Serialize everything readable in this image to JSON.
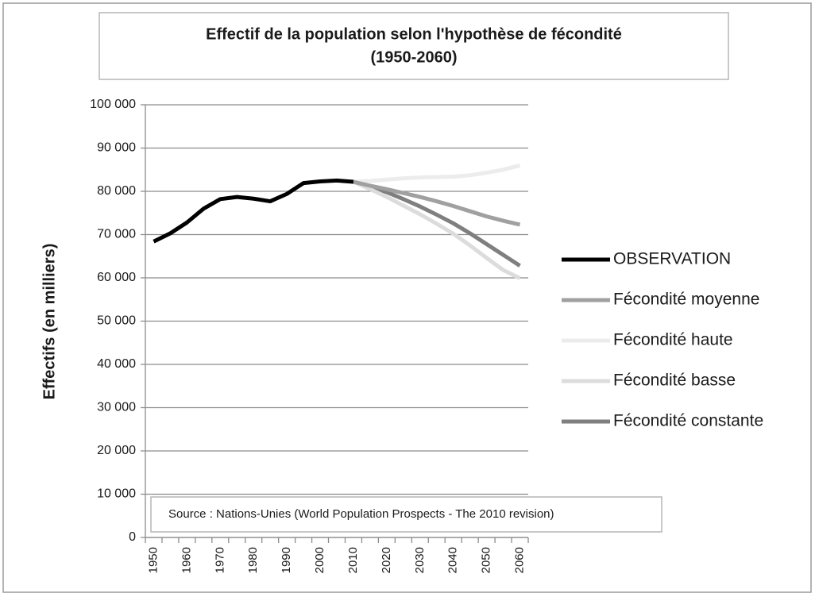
{
  "chart_data": {
    "type": "line",
    "title": [
      "Effectif de la population selon l'hypothèse de fécondité",
      "(1950-2060)"
    ],
    "y_label": "Effectifs (en milliers)",
    "annotation": "Source : Nations-Unies (World Population Prospects - The 2010 revision)",
    "categories": [
      "1950",
      null,
      "1960",
      null,
      "1970",
      null,
      "1980",
      null,
      "1990",
      null,
      "2000",
      null,
      "2010",
      null,
      "2020",
      null,
      "2030",
      null,
      "2040",
      null,
      "2050",
      null,
      "2060"
    ],
    "ylim": [
      0,
      100000
    ],
    "yticks": [
      0,
      {
        "value": 10000,
        "label": "10 000"
      },
      {
        "value": 20000,
        "label": "20 000"
      },
      {
        "value": 30000,
        "label": "30 000"
      },
      {
        "value": 40000,
        "label": "40 000"
      },
      {
        "value": 50000,
        "label": "50 000"
      },
      {
        "value": 60000,
        "label": "60 000"
      },
      {
        "value": 70000,
        "label": "70 000"
      },
      {
        "value": 80000,
        "label": "80 000"
      },
      {
        "value": 90000,
        "label": "90 000"
      },
      {
        "value": 100000,
        "label": "100 000"
      }
    ],
    "grid": true,
    "legend": "right",
    "series": [
      {
        "name": "OBSERVATION",
        "color": "#000000",
        "values": [
          68400,
          70300,
          72800,
          76000,
          78200,
          78700,
          78300,
          77700,
          79400,
          81900,
          82300,
          82500,
          82200,
          null,
          null,
          null,
          null,
          null,
          null,
          null,
          null,
          null,
          null
        ]
      },
      {
        "name": "Fécondité moyenne",
        "color": "#a0a0a0",
        "values": [
          null,
          null,
          null,
          null,
          null,
          null,
          null,
          null,
          null,
          null,
          null,
          null,
          82200,
          81300,
          80500,
          79600,
          78700,
          77700,
          76600,
          75400,
          74200,
          73200,
          72300
        ]
      },
      {
        "name": "Fécondité haute",
        "color": "#ececec",
        "values": [
          null,
          null,
          null,
          null,
          null,
          null,
          null,
          null,
          null,
          null,
          null,
          null,
          82200,
          82400,
          82700,
          83000,
          83200,
          83300,
          83400,
          83700,
          84300,
          85000,
          86000
        ]
      },
      {
        "name": "Fécondité basse",
        "color": "#dcdcdc",
        "values": [
          null,
          null,
          null,
          null,
          null,
          null,
          null,
          null,
          null,
          null,
          null,
          null,
          82200,
          80500,
          78700,
          76700,
          74700,
          72500,
          70200,
          67500,
          64600,
          61800,
          59900
        ]
      },
      {
        "name": "Fécondité constante",
        "color": "#7f7f7f",
        "values": [
          null,
          null,
          null,
          null,
          null,
          null,
          null,
          null,
          null,
          null,
          null,
          null,
          82200,
          81000,
          79800,
          78200,
          76500,
          74600,
          72600,
          70300,
          67800,
          65300,
          62800
        ]
      }
    ]
  }
}
